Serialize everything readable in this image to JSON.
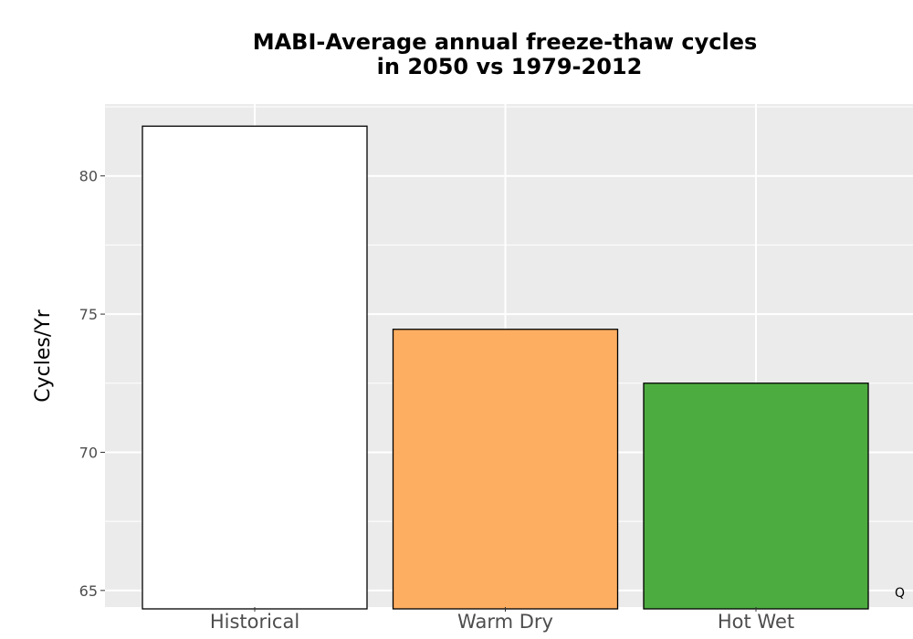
{
  "chart_data": {
    "type": "bar",
    "title_lines": [
      "MABI-Average annual freeze-thaw cycles",
      "in 2050 vs 1979-2012"
    ],
    "xlabel": "",
    "ylabel": "Cycles/Yr",
    "categories": [
      "Historical",
      "Warm Dry",
      "Hot Wet"
    ],
    "values": [
      81.8,
      74.45,
      72.5
    ],
    "colors": [
      "#ffffff",
      "#fdae61",
      "#4dac40"
    ],
    "ylim": [
      64.4,
      82.6
    ],
    "yticks": [
      65,
      70,
      75,
      80
    ],
    "grid": true,
    "panel_background": "#ebebeb",
    "bar_outline": "#000000",
    "corner_text": "Q"
  }
}
